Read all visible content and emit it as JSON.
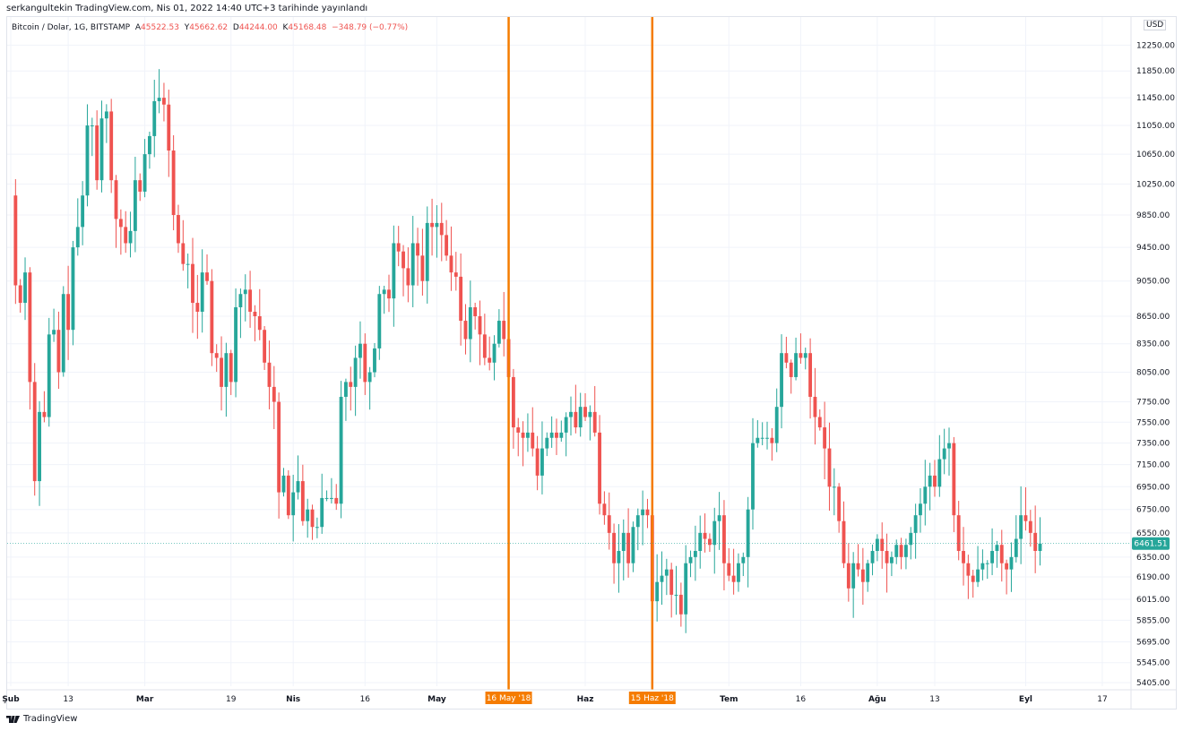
{
  "header": {
    "publish_line": "serkangultekin TradingView.com, Nis 01, 2022 14:40 UTC+3 tarihinde yayınlandı"
  },
  "legend": {
    "symbol": "Bitcoin / Dolar, 1G, BITSTAMP",
    "open_label": "A",
    "open": "45522.53",
    "high_label": "Y",
    "high": "45662.62",
    "low_label": "D",
    "low": "44244.00",
    "close_label": "K",
    "close": "45168.48",
    "change": "−348.79 (−0.77%)"
  },
  "currency": "USD",
  "footer": {
    "brand": "TradingView"
  },
  "colors": {
    "up": "#26a69a",
    "down": "#ef5350",
    "marker": "#f57c00",
    "grid": "#f0f3fa",
    "axis_text": "#131722"
  },
  "chart_data": {
    "type": "candlestick",
    "price_scale": "log",
    "ylim": [
      5380,
      12700
    ],
    "y_ticks": [
      12250,
      11850,
      11450,
      11050,
      10650,
      10250,
      9850,
      9450,
      9050,
      8650,
      8350,
      8050,
      7750,
      7550,
      7350,
      7150,
      6950,
      6750,
      6550,
      6350,
      6190,
      6015,
      5855,
      5695,
      5545,
      5405
    ],
    "y_tick_labels": [
      "12250.00",
      "11850.00",
      "11450.00",
      "11050.00",
      "10650.00",
      "10250.00",
      "9850.00",
      "9450.00",
      "9050.00",
      "8650.00",
      "8350.00",
      "8050.00",
      "7750.00",
      "7550.00",
      "7350.00",
      "7150.00",
      "6950.00",
      "6750.00",
      "6550.00",
      "6350.00",
      "6190.00",
      "6015.00",
      "5855.00",
      "5695.00",
      "5545.00",
      "5405.00"
    ],
    "x_range": [
      "2018-02-01",
      "2018-09-23"
    ],
    "x_ticks": [
      {
        "date": "2018-02-01",
        "label": "Şub",
        "bold": true
      },
      {
        "date": "2018-02-13",
        "label": "13",
        "bold": false
      },
      {
        "date": "2018-03-01",
        "label": "Mar",
        "bold": true
      },
      {
        "date": "2018-03-19",
        "label": "19",
        "bold": false
      },
      {
        "date": "2018-04-01",
        "label": "Nis",
        "bold": true
      },
      {
        "date": "2018-04-16",
        "label": "16",
        "bold": false
      },
      {
        "date": "2018-05-01",
        "label": "May",
        "bold": true
      },
      {
        "date": "2018-06-01",
        "label": "Haz",
        "bold": true
      },
      {
        "date": "2018-07-01",
        "label": "Tem",
        "bold": true
      },
      {
        "date": "2018-07-16",
        "label": "16",
        "bold": false
      },
      {
        "date": "2018-08-01",
        "label": "Ağu",
        "bold": true
      },
      {
        "date": "2018-08-13",
        "label": "13",
        "bold": false
      },
      {
        "date": "2018-09-01",
        "label": "Eyl",
        "bold": true
      },
      {
        "date": "2018-09-17",
        "label": "17",
        "bold": false
      }
    ],
    "vertical_markers": [
      {
        "date": "2018-05-16",
        "label": "16 May '18"
      },
      {
        "date": "2018-06-15",
        "label": "15 Haz '18"
      }
    ],
    "last_price": {
      "value": 6461.51,
      "label": "6461.51"
    },
    "start_date": "2018-02-01",
    "closes": [
      10100,
      9000,
      8800,
      9150,
      7950,
      7000,
      7650,
      7600,
      8450,
      8500,
      8050,
      8900,
      8500,
      9450,
      9700,
      10100,
      11050,
      11050,
      10300,
      11150,
      11250,
      10300,
      9800,
      9700,
      9500,
      9650,
      10300,
      10150,
      10650,
      10900,
      11400,
      11450,
      11350,
      10700,
      9850,
      9500,
      9250,
      9250,
      8800,
      8700,
      9150,
      9050,
      8250,
      8200,
      7900,
      8250,
      7950,
      8750,
      8900,
      8950,
      8700,
      8650,
      8500,
      8150,
      7900,
      7750,
      6900,
      7050,
      6700,
      6900,
      7000,
      6650,
      6750,
      6600,
      6600,
      6850,
      6850,
      6850,
      6800,
      7800,
      7950,
      7900,
      8200,
      8350,
      7950,
      8050,
      8300,
      8900,
      8950,
      8850,
      9500,
      9400,
      9200,
      9000,
      9500,
      9350,
      9050,
      9750,
      9700,
      9750,
      9600,
      9350,
      9150,
      9100,
      8600,
      8400,
      8750,
      8650,
      8450,
      8200,
      8150,
      8350,
      8600,
      8400,
      8000,
      7500,
      7450,
      7400,
      7450,
      7300,
      7050,
      7300,
      7400,
      7450,
      7400,
      7450,
      7600,
      7650,
      7500,
      7700,
      7600,
      7650,
      7450,
      6800,
      6700,
      6550,
      6300,
      6400,
      6550,
      6300,
      6600,
      6700,
      6750,
      6700,
      6000,
      6150,
      6200,
      6250,
      6050,
      6050,
      5900,
      6300,
      6350,
      6400,
      6550,
      6500,
      6450,
      6650,
      6700,
      6300,
      6200,
      6150,
      6300,
      6350,
      6750,
      7350,
      7400,
      7400,
      7400,
      7350,
      7700,
      8250,
      8150,
      8000,
      8250,
      8200,
      8250,
      7800,
      7600,
      7500,
      7300,
      6950,
      6950,
      6650,
      6300,
      6100,
      6300,
      6250,
      6150,
      6300,
      6400,
      6500,
      6400,
      6300,
      6350,
      6450,
      6350,
      6450,
      6550,
      6700,
      6800,
      6950,
      7050,
      6950,
      7200,
      7300,
      7350,
      6700,
      6400,
      6300,
      6200,
      6150,
      6250,
      6300,
      6300,
      6400,
      6450,
      6300,
      6250,
      6350,
      6500,
      6700,
      6650,
      6550,
      6400,
      6461
    ]
  }
}
